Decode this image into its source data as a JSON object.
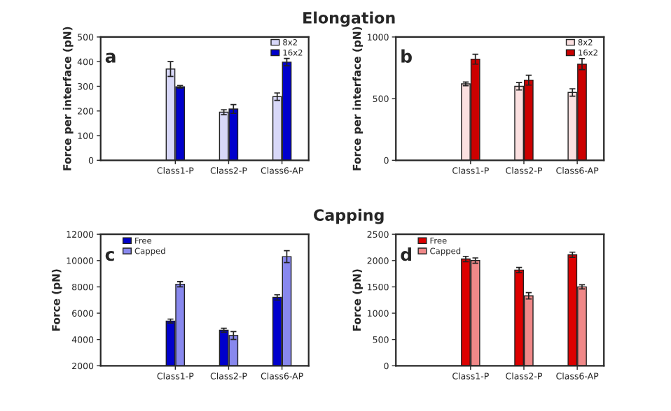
{
  "chart_data": [
    {
      "type": "bar",
      "title": "Elongation",
      "ylabel": "Force per interface (pN)",
      "annotations": [
        "a"
      ],
      "categories": [
        "Class1-P",
        "Class2-P",
        "Class6-AP"
      ],
      "ylim": [
        0,
        500
      ],
      "yticks": [
        0,
        100,
        200,
        300,
        400,
        500
      ],
      "legend": "top right",
      "grid": false,
      "series": [
        {
          "name": "8x2",
          "color": "#d8d8f8",
          "values": [
            370,
            195,
            258
          ],
          "errors": [
            30,
            10,
            15
          ]
        },
        {
          "name": "16x2",
          "color": "#0000cc",
          "values": [
            298,
            208,
            398
          ],
          "errors": [
            5,
            18,
            15
          ]
        }
      ]
    },
    {
      "type": "bar",
      "ylabel": "Force per interface (pN)",
      "annotations": [
        "b"
      ],
      "categories": [
        "Class1-P",
        "Class2-P",
        "Class6-AP"
      ],
      "ylim": [
        0,
        1000
      ],
      "yticks": [
        0,
        500,
        1000
      ],
      "legend": "top right",
      "grid": false,
      "series": [
        {
          "name": "8x2",
          "color": "#fbe0e0",
          "values": [
            620,
            600,
            550
          ],
          "errors": [
            15,
            30,
            30
          ]
        },
        {
          "name": "16x2",
          "color": "#cc0000",
          "values": [
            820,
            650,
            780
          ],
          "errors": [
            40,
            40,
            45
          ]
        }
      ]
    },
    {
      "type": "bar",
      "title": "Capping",
      "ylabel": "Force (pN)",
      "annotations": [
        "c"
      ],
      "categories": [
        "Class1-P",
        "Class2-P",
        "Class6-AP"
      ],
      "ylim": [
        2000,
        12000
      ],
      "yticks": [
        2000,
        4000,
        6000,
        8000,
        10000,
        12000
      ],
      "legend": "top left",
      "grid": false,
      "series": [
        {
          "name": "Free",
          "color": "#0000cc",
          "values": [
            5400,
            4700,
            7200
          ],
          "errors": [
            150,
            150,
            200
          ]
        },
        {
          "name": "Capped",
          "color": "#8888ee",
          "values": [
            8200,
            4300,
            10300
          ],
          "errors": [
            200,
            300,
            450
          ]
        }
      ]
    },
    {
      "type": "bar",
      "ylabel": "Force (pN)",
      "annotations": [
        "d"
      ],
      "categories": [
        "Class1-P",
        "Class2-P",
        "Class6-AP"
      ],
      "ylim": [
        0,
        2500
      ],
      "yticks": [
        0,
        500,
        1000,
        1500,
        2000,
        2500
      ],
      "legend": "top left",
      "grid": false,
      "series": [
        {
          "name": "Free",
          "color": "#dd0000",
          "values": [
            2030,
            1820,
            2110
          ],
          "errors": [
            50,
            50,
            50
          ]
        },
        {
          "name": "Capped",
          "color": "#f08888",
          "values": [
            2000,
            1330,
            1500
          ],
          "errors": [
            50,
            60,
            40
          ]
        }
      ]
    }
  ]
}
